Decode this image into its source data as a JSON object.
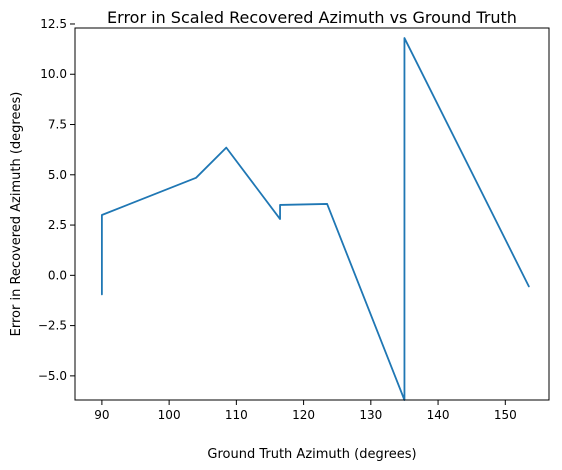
{
  "chart_data": {
    "type": "line",
    "title": "Error in Scaled Recovered Azimuth vs Ground Truth",
    "xlabel": "Ground Truth Azimuth (degrees)",
    "ylabel": "Error in Recovered Azimuth (degrees)",
    "xlim": [
      86,
      156.5
    ],
    "ylim": [
      -6.2,
      12.3
    ],
    "grid": false,
    "x_ticks": [
      90,
      100,
      110,
      120,
      130,
      140,
      150
    ],
    "y_ticks": [
      -5.0,
      -2.5,
      0.0,
      2.5,
      5.0,
      7.5,
      10.0,
      12.5
    ],
    "x_tick_labels": [
      "90",
      "100",
      "110",
      "120",
      "130",
      "140",
      "150"
    ],
    "y_tick_labels": [
      "−5.0",
      "−2.5",
      "0.0",
      "2.5",
      "5.0",
      "7.5",
      "10.0",
      "12.5"
    ],
    "series": [
      {
        "color": "#1f77b4",
        "points": [
          [
            90.0,
            -0.95
          ],
          [
            90.0,
            3.0
          ],
          [
            104.0,
            4.85
          ],
          [
            108.5,
            6.35
          ],
          [
            116.5,
            2.8
          ],
          [
            116.5,
            3.5
          ],
          [
            123.5,
            3.55
          ],
          [
            135.0,
            -6.2
          ],
          [
            135.0,
            11.8
          ],
          [
            153.5,
            -0.55
          ]
        ]
      }
    ]
  }
}
